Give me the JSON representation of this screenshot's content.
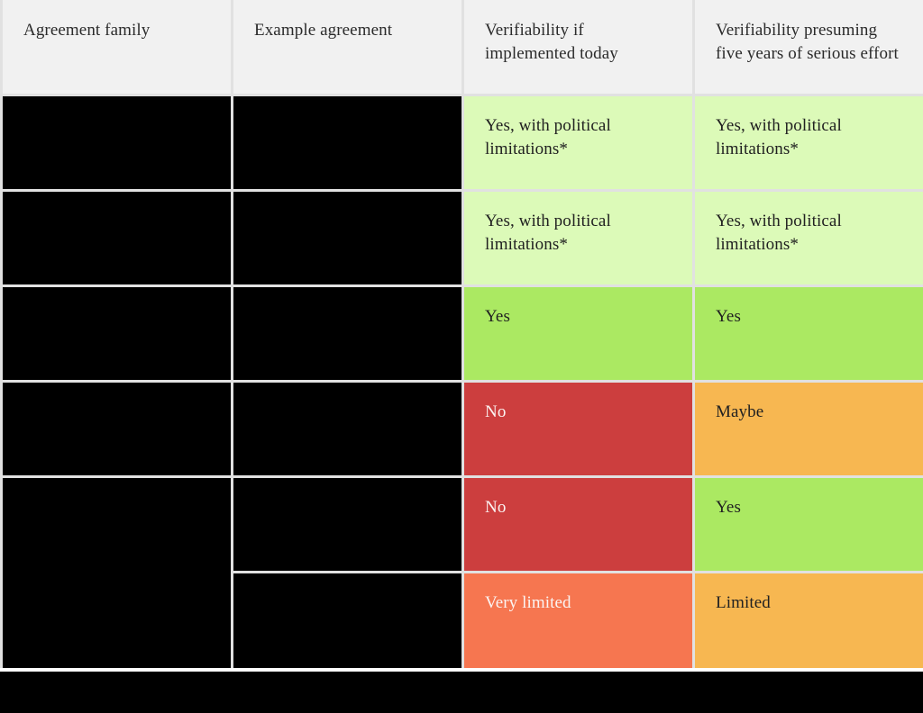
{
  "palette": {
    "header_bg": "#f1f1f1",
    "gap": "#e1e1e1",
    "black": "#000000",
    "light_green": "#dcfab8",
    "green": "#abe962",
    "red": "#cc3e3e",
    "orange": "#f7b751",
    "orange_red": "#f67650",
    "text_dark": "#212121",
    "text_white": "#fbf4f2"
  },
  "table": {
    "headers": [
      "Agreement family",
      "Example agreement",
      "Verifiability if implemented today",
      "Verifiability presuming five years of serious effort"
    ],
    "rows": [
      {
        "family": {
          "redacted": true
        },
        "example": {
          "redacted": true
        },
        "today": {
          "text": "Yes, with political limitations*",
          "status": "light_green",
          "text_color": "text_dark"
        },
        "five_years": {
          "text": "Yes, with political limitations*",
          "status": "light_green",
          "text_color": "text_dark"
        }
      },
      {
        "family": {
          "redacted": true
        },
        "example": {
          "redacted": true
        },
        "today": {
          "text": "Yes, with political limitations*",
          "status": "light_green",
          "text_color": "text_dark"
        },
        "five_years": {
          "text": "Yes, with political limitations*",
          "status": "light_green",
          "text_color": "text_dark"
        }
      },
      {
        "family": {
          "redacted": true
        },
        "example": {
          "redacted": true
        },
        "today": {
          "text": "Yes",
          "status": "green",
          "text_color": "text_dark"
        },
        "five_years": {
          "text": "Yes",
          "status": "green",
          "text_color": "text_dark"
        }
      },
      {
        "family": {
          "redacted": true
        },
        "example": {
          "redacted": true
        },
        "today": {
          "text": "No",
          "status": "red",
          "text_color": "text_white"
        },
        "five_years": {
          "text": "Maybe",
          "status": "orange",
          "text_color": "text_dark"
        }
      },
      {
        "family": {
          "redacted": true,
          "rowspan": 2
        },
        "example": {
          "redacted": true
        },
        "today": {
          "text": "No",
          "status": "red",
          "text_color": "text_white"
        },
        "five_years": {
          "text": "Yes",
          "status": "green",
          "text_color": "text_dark"
        }
      },
      {
        "example": {
          "redacted": true
        },
        "today": {
          "text": "Very limited",
          "status": "orange_red",
          "text_color": "text_white"
        },
        "five_years": {
          "text": "Limited",
          "status": "orange",
          "text_color": "text_dark"
        }
      }
    ],
    "footnote": {
      "redacted": true
    }
  },
  "chart_data": {
    "type": "table",
    "columns": [
      "Agreement family",
      "Example agreement",
      "Verifiability if implemented today",
      "Verifiability presuming five years of serious effort"
    ],
    "rows": [
      [
        null,
        null,
        "Yes, with political limitations*",
        "Yes, with political limitations*"
      ],
      [
        null,
        null,
        "Yes, with political limitations*",
        "Yes, with political limitations*"
      ],
      [
        null,
        null,
        "Yes",
        "Yes"
      ],
      [
        null,
        null,
        "No",
        "Maybe"
      ],
      [
        null,
        null,
        "No",
        "Yes"
      ],
      [
        null,
        null,
        "Very limited",
        "Limited"
      ]
    ],
    "cell_statuses": [
      [
        "redacted",
        "redacted",
        "light_green",
        "light_green"
      ],
      [
        "redacted",
        "redacted",
        "light_green",
        "light_green"
      ],
      [
        "redacted",
        "redacted",
        "green",
        "green"
      ],
      [
        "redacted",
        "redacted",
        "red",
        "orange"
      ],
      [
        "redacted",
        "redacted",
        "red",
        "green"
      ],
      [
        "redacted",
        "redacted",
        "orange_red",
        "orange"
      ]
    ],
    "notes": "First two columns and the footnote bar beneath the table are blacked out (redacted). The Agreement family cell spanning the last two rows is merged."
  }
}
